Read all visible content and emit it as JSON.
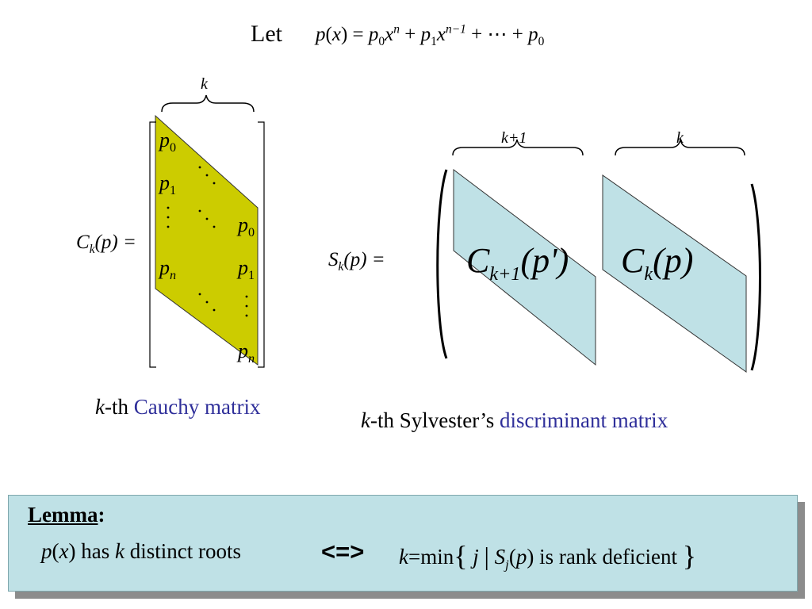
{
  "title": {
    "let": "Let",
    "formula": {
      "p": "p",
      "x": "x",
      "p0": "p",
      "p0_sub": "0",
      "x_n": "x",
      "n": "n",
      "p1": "p",
      "p1_sub": "1",
      "x_n1": "x",
      "n1": "n−1",
      "dots": "+ ⋯ +",
      "plast": "p",
      "plast_sub": "0"
    }
  },
  "cauchy": {
    "lhs_C": "C",
    "lhs_sub": "k",
    "lhs_arg": "(p) =",
    "brace_label": "k",
    "entries": {
      "p0_left": "p",
      "p0_left_sub": "0",
      "p1_left": "p",
      "p1_left_sub": "1",
      "pn_left": "p",
      "pn_left_sub": "n",
      "p0_right": "p",
      "p0_right_sub": "0",
      "p1_right": "p",
      "p1_right_sub": "1",
      "pn_right": "p",
      "pn_right_sub": "n"
    },
    "caption_k": "k",
    "caption_th": "-th ",
    "caption_name": "Cauchy matrix"
  },
  "sylvester": {
    "lhs_S": "S",
    "lhs_sub": "k",
    "lhs_arg": "(p) =",
    "brace_left_label": "k+1",
    "brace_right_label": "k",
    "block1": {
      "C": "C",
      "sub": "k+1",
      "arg": "(p')"
    },
    "block2": {
      "C": "C",
      "sub": "k",
      "arg": "(p)"
    },
    "caption_k": "k",
    "caption_th": "-th Sylvester’s ",
    "caption_name": "discriminant matrix"
  },
  "lemma": {
    "heading": "Lemma",
    "colon": ":",
    "p": "p",
    "x": "x",
    "has": " has ",
    "k": "k",
    "distinct": " distinct roots",
    "arrow": "<=>",
    "k2": "k",
    "eq_min": "=min",
    "lbrace": "{",
    "j": "j",
    "bar": "|",
    "S": "S",
    "S_sub": "j",
    "p2": "p",
    "rank": " is rank deficient",
    "rbrace": "}"
  },
  "colors": {
    "cauchy_fill": "#cccc00",
    "sylvester_fill": "#bfe1e6",
    "caption_blue": "#2f2f9a",
    "lemma_box": "#bfe1e6",
    "shadow": "#8c8c8c"
  }
}
